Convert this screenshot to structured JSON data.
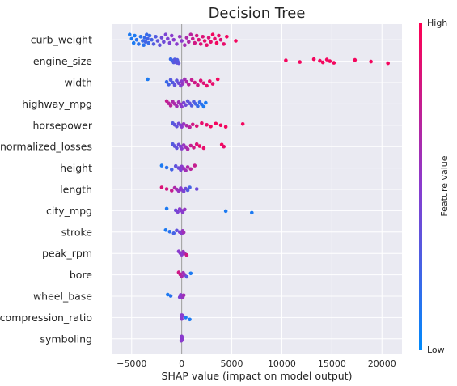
{
  "chart_data": {
    "type": "scatter",
    "subtype": "shap-beeswarm",
    "title": "Decision Tree",
    "xlabel": "SHAP value (impact on model output)",
    "xlim": [
      -7000,
      22000
    ],
    "xticks": [
      -5000,
      0,
      5000,
      10000,
      15000,
      20000
    ],
    "xtick_labels": [
      "−5000",
      "0",
      "5000",
      "10000",
      "15000",
      "20000"
    ],
    "colorbar": {
      "label": "Feature value",
      "high": "High",
      "low": "Low"
    },
    "colors": {
      "low": "#008afb",
      "high": "#ff0052",
      "background": "#eaeaf2",
      "zero_line": "#999999"
    },
    "features": [
      {
        "name": "curb_weight",
        "spread": 13,
        "points": [
          [
            -5200,
            0.1
          ],
          [
            -5000,
            0.1
          ],
          [
            -4800,
            0.1
          ],
          [
            -4700,
            0.1
          ],
          [
            -4500,
            0.15
          ],
          [
            -4300,
            0.15
          ],
          [
            -4100,
            0.15
          ],
          [
            -3900,
            0.2
          ],
          [
            -3800,
            0.15
          ],
          [
            -3700,
            0.2
          ],
          [
            -3600,
            0.25
          ],
          [
            -3500,
            0.2
          ],
          [
            -3400,
            0.25
          ],
          [
            -3300,
            0.2
          ],
          [
            -3200,
            0.2
          ],
          [
            -3000,
            0.25
          ],
          [
            -2800,
            0.3
          ],
          [
            -2600,
            0.3
          ],
          [
            -2400,
            0.35
          ],
          [
            -2200,
            0.35
          ],
          [
            -2000,
            0.4
          ],
          [
            -1800,
            0.4
          ],
          [
            -1600,
            0.45
          ],
          [
            -1400,
            0.45
          ],
          [
            -1200,
            0.45
          ],
          [
            -1000,
            0.5
          ],
          [
            -800,
            0.5
          ],
          [
            -500,
            0.5
          ],
          [
            -200,
            0.55
          ],
          [
            0,
            0.5
          ],
          [
            300,
            0.6
          ],
          [
            500,
            0.65
          ],
          [
            700,
            0.65
          ],
          [
            900,
            0.7
          ],
          [
            1100,
            0.75
          ],
          [
            1300,
            0.8
          ],
          [
            1500,
            0.8
          ],
          [
            1700,
            0.85
          ],
          [
            1900,
            0.85
          ],
          [
            2100,
            0.85
          ],
          [
            2300,
            0.9
          ],
          [
            2500,
            0.9
          ],
          [
            2700,
            0.85
          ],
          [
            2900,
            0.9
          ],
          [
            3100,
            0.95
          ],
          [
            3300,
            0.9
          ],
          [
            3500,
            0.95
          ],
          [
            3700,
            0.9
          ],
          [
            3900,
            0.85
          ],
          [
            4200,
            0.9
          ],
          [
            4500,
            0.95
          ],
          [
            5400,
            0.95
          ]
        ]
      },
      {
        "name": "engine_size",
        "spread": 5,
        "points": [
          [
            -1100,
            0.2
          ],
          [
            -900,
            0.25
          ],
          [
            -800,
            0.3
          ],
          [
            -700,
            0.3
          ],
          [
            -600,
            0.35
          ],
          [
            -500,
            0.35
          ],
          [
            -450,
            0.3
          ],
          [
            -400,
            0.3
          ],
          [
            -300,
            0.35
          ],
          [
            10400,
            0.95
          ],
          [
            11800,
            0.95
          ],
          [
            13200,
            0.95
          ],
          [
            13800,
            0.95
          ],
          [
            14100,
            0.95
          ],
          [
            14500,
            0.95
          ],
          [
            14800,
            0.95
          ],
          [
            15200,
            0.95
          ],
          [
            17300,
            0.95
          ],
          [
            18900,
            0.95
          ],
          [
            20600,
            0.95
          ]
        ]
      },
      {
        "name": "width",
        "spread": 8,
        "points": [
          [
            -3400,
            0.1
          ],
          [
            -1500,
            0.2
          ],
          [
            -1300,
            0.25
          ],
          [
            -1100,
            0.3
          ],
          [
            -900,
            0.3
          ],
          [
            -700,
            0.35
          ],
          [
            -500,
            0.35
          ],
          [
            -300,
            0.4
          ],
          [
            -100,
            0.45
          ],
          [
            0,
            0.5
          ],
          [
            100,
            0.55
          ],
          [
            300,
            0.6
          ],
          [
            500,
            0.65
          ],
          [
            700,
            0.7
          ],
          [
            1000,
            0.75
          ],
          [
            1300,
            0.8
          ],
          [
            1600,
            0.8
          ],
          [
            1900,
            0.85
          ],
          [
            2200,
            0.85
          ],
          [
            2500,
            0.9
          ],
          [
            2800,
            0.9
          ],
          [
            3100,
            0.9
          ],
          [
            3600,
            0.95
          ]
        ]
      },
      {
        "name": "highway_mpg",
        "spread": 7,
        "points": [
          [
            -1500,
            0.75
          ],
          [
            -1300,
            0.7
          ],
          [
            -1100,
            0.7
          ],
          [
            -900,
            0.65
          ],
          [
            -700,
            0.65
          ],
          [
            -500,
            0.6
          ],
          [
            -300,
            0.6
          ],
          [
            -100,
            0.55
          ],
          [
            0,
            0.5
          ],
          [
            200,
            0.45
          ],
          [
            400,
            0.4
          ],
          [
            600,
            0.35
          ],
          [
            800,
            0.35
          ],
          [
            1000,
            0.3
          ],
          [
            1200,
            0.3
          ],
          [
            1400,
            0.25
          ],
          [
            1600,
            0.2
          ],
          [
            1800,
            0.2
          ],
          [
            2000,
            0.15
          ],
          [
            2200,
            0.1
          ],
          [
            2400,
            0.1
          ]
        ]
      },
      {
        "name": "horsepower",
        "spread": 5,
        "points": [
          [
            -900,
            0.3
          ],
          [
            -700,
            0.35
          ],
          [
            -500,
            0.35
          ],
          [
            -300,
            0.4
          ],
          [
            -100,
            0.45
          ],
          [
            0,
            0.5
          ],
          [
            200,
            0.55
          ],
          [
            500,
            0.65
          ],
          [
            800,
            0.7
          ],
          [
            1100,
            0.8
          ],
          [
            1500,
            0.85
          ],
          [
            2000,
            0.9
          ],
          [
            2500,
            0.9
          ],
          [
            2900,
            0.95
          ],
          [
            3400,
            0.95
          ],
          [
            3900,
            0.95
          ],
          [
            4400,
            0.95
          ],
          [
            6100,
            0.95
          ]
        ]
      },
      {
        "name": "normalized_losses",
        "spread": 6,
        "points": [
          [
            -900,
            0.3
          ],
          [
            -700,
            0.35
          ],
          [
            -500,
            0.35
          ],
          [
            -300,
            0.4
          ],
          [
            -100,
            0.45
          ],
          [
            0,
            0.5
          ],
          [
            200,
            0.55
          ],
          [
            400,
            0.6
          ],
          [
            600,
            0.65
          ],
          [
            900,
            0.75
          ],
          [
            1200,
            0.8
          ],
          [
            1500,
            0.85
          ],
          [
            1800,
            0.9
          ],
          [
            2200,
            0.9
          ],
          [
            4000,
            0.95
          ],
          [
            4200,
            0.9
          ]
        ]
      },
      {
        "name": "height",
        "spread": 6,
        "points": [
          [
            -2000,
            0.1
          ],
          [
            -1500,
            0.15
          ],
          [
            -1000,
            0.25
          ],
          [
            -600,
            0.35
          ],
          [
            -300,
            0.4
          ],
          [
            -100,
            0.45
          ],
          [
            0,
            0.5
          ],
          [
            200,
            0.55
          ],
          [
            400,
            0.6
          ],
          [
            600,
            0.65
          ],
          [
            900,
            0.7
          ],
          [
            1300,
            0.75
          ]
        ]
      },
      {
        "name": "length",
        "spread": 5,
        "points": [
          [
            -2000,
            0.85
          ],
          [
            -1500,
            0.8
          ],
          [
            -1000,
            0.75
          ],
          [
            -700,
            0.65
          ],
          [
            -500,
            0.6
          ],
          [
            -300,
            0.55
          ],
          [
            -100,
            0.5
          ],
          [
            0,
            0.5
          ],
          [
            200,
            0.45
          ],
          [
            400,
            0.4
          ],
          [
            600,
            0.3
          ],
          [
            800,
            0.25
          ],
          [
            1500,
            0.4
          ]
        ]
      },
      {
        "name": "city_mpg",
        "spread": 5,
        "points": [
          [
            -1500,
            0.1
          ],
          [
            -600,
            0.4
          ],
          [
            -400,
            0.45
          ],
          [
            -200,
            0.5
          ],
          [
            0,
            0.5
          ],
          [
            100,
            0.5
          ],
          [
            300,
            0.55
          ],
          [
            4400,
            0.1
          ],
          [
            7000,
            0.1
          ]
        ]
      },
      {
        "name": "stroke",
        "spread": 5,
        "points": [
          [
            -1600,
            0.1
          ],
          [
            -1200,
            0.15
          ],
          [
            -800,
            0.25
          ],
          [
            -500,
            0.35
          ],
          [
            -200,
            0.45
          ],
          [
            0,
            0.5
          ],
          [
            100,
            0.55
          ],
          [
            200,
            0.6
          ]
        ]
      },
      {
        "name": "peak_rpm",
        "spread": 5,
        "points": [
          [
            -300,
            0.5
          ],
          [
            -150,
            0.5
          ],
          [
            0,
            0.5
          ],
          [
            150,
            0.55
          ],
          [
            300,
            0.6
          ],
          [
            500,
            0.8
          ]
        ]
      },
      {
        "name": "bore",
        "spread": 6,
        "points": [
          [
            -300,
            0.8
          ],
          [
            -150,
            0.75
          ],
          [
            0,
            0.65
          ],
          [
            150,
            0.6
          ],
          [
            300,
            0.55
          ],
          [
            500,
            0.3
          ],
          [
            900,
            0.1
          ]
        ]
      },
      {
        "name": "wheel_base",
        "spread": 4,
        "points": [
          [
            -1400,
            0.1
          ],
          [
            -1100,
            0.15
          ],
          [
            -200,
            0.45
          ],
          [
            -100,
            0.5
          ],
          [
            0,
            0.5
          ],
          [
            100,
            0.55
          ],
          [
            200,
            0.6
          ]
        ]
      },
      {
        "name": "compression_ratio",
        "spread": 6,
        "points": [
          [
            0,
            0.5
          ],
          [
            0,
            0.5
          ],
          [
            0,
            0.5
          ],
          [
            100,
            0.5
          ],
          [
            400,
            0.1
          ],
          [
            800,
            0.1
          ]
        ]
      },
      {
        "name": "symboling",
        "spread": 6,
        "points": [
          [
            0,
            0.5
          ],
          [
            0,
            0.5
          ],
          [
            0,
            0.5
          ],
          [
            0,
            0.5
          ],
          [
            50,
            0.5
          ],
          [
            -50,
            0.5
          ]
        ]
      }
    ]
  }
}
